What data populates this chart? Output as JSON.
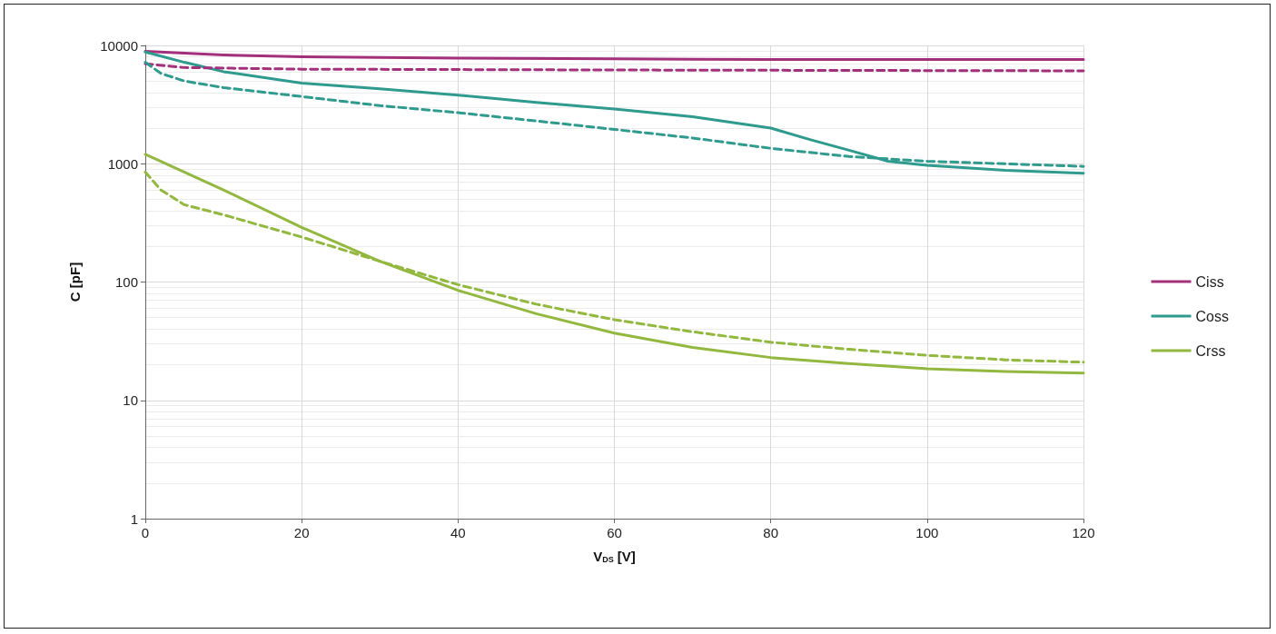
{
  "chart_data": {
    "type": "line",
    "xlabel": "V$_{DS}$ [V]",
    "ylabel": "C [pF]",
    "log": "y",
    "grid": true,
    "legend": "right",
    "marker": "none",
    "xlim": [
      0,
      120
    ],
    "xticks": [
      0,
      20,
      40,
      60,
      80,
      100,
      120
    ],
    "ylim": [
      1,
      10000
    ],
    "yticks": [
      1,
      10,
      100,
      1000,
      10000
    ],
    "series": [
      {
        "name": "Ciss",
        "color": "#a3307a",
        "line_style": "solid",
        "x": [
          0,
          10,
          20,
          40,
          60,
          80,
          120
        ],
        "values": [
          8900,
          8300,
          8000,
          7800,
          7700,
          7600,
          7600
        ]
      },
      {
        "name": "Coss",
        "color": "#2f9a8e",
        "line_style": "solid",
        "x": [
          0,
          5,
          10,
          20,
          30,
          40,
          50,
          60,
          70,
          80,
          85,
          90,
          95,
          100,
          110,
          120
        ],
        "values": [
          8800,
          7200,
          6000,
          4800,
          4300,
          3800,
          3300,
          2900,
          2500,
          2000,
          1600,
          1300,
          1050,
          970,
          880,
          830
        ]
      },
      {
        "name": "Crss",
        "color": "#93b83f",
        "line_style": "solid",
        "x": [
          0,
          10,
          20,
          30,
          40,
          50,
          60,
          70,
          80,
          90,
          100,
          110,
          120
        ],
        "values": [
          1200,
          600,
          290,
          150,
          85,
          54,
          37,
          28,
          23,
          20.5,
          18.5,
          17.5,
          17
        ]
      },
      {
        "color": "#a3307a",
        "line_style": "dashed",
        "x": [
          0,
          5,
          20,
          60,
          120
        ],
        "values": [
          7000,
          6500,
          6300,
          6200,
          6100
        ]
      },
      {
        "color": "#2f9a8e",
        "line_style": "dashed",
        "x": [
          0,
          2,
          5,
          10,
          20,
          30,
          40,
          50,
          60,
          70,
          80,
          90,
          100,
          120
        ],
        "values": [
          7200,
          5800,
          5000,
          4400,
          3700,
          3100,
          2700,
          2300,
          1950,
          1650,
          1350,
          1150,
          1050,
          950
        ]
      },
      {
        "color": "#93b83f",
        "line_style": "dashed",
        "x": [
          0,
          2,
          5,
          10,
          20,
          30,
          40,
          50,
          60,
          70,
          80,
          90,
          100,
          110,
          120
        ],
        "values": [
          850,
          600,
          450,
          370,
          240,
          150,
          95,
          65,
          48,
          38,
          31,
          27,
          24,
          22,
          21
        ]
      }
    ]
  }
}
